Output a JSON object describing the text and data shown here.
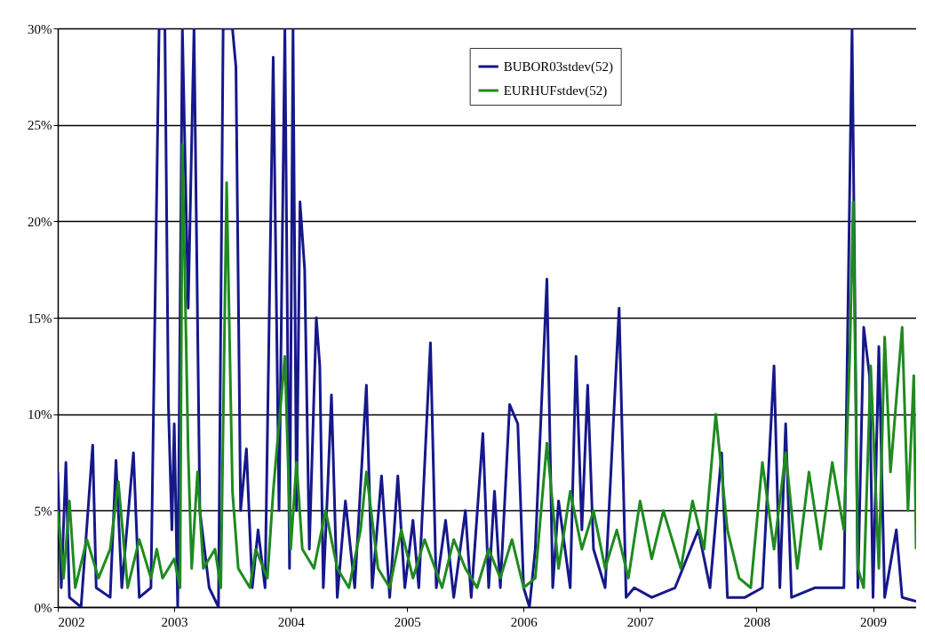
{
  "chart_data": {
    "type": "line",
    "xlim": [
      2002,
      2009.37
    ],
    "xticks": [
      2002,
      2003,
      2004,
      2005,
      2006,
      2007,
      2008,
      2009
    ],
    "ylim": [
      0,
      30
    ],
    "yticks": [
      {
        "value": 0,
        "label": "0%"
      },
      {
        "value": 5,
        "label": "5%"
      },
      {
        "value": 10,
        "label": "10%"
      },
      {
        "value": 15,
        "label": "15%"
      },
      {
        "value": 20,
        "label": "20%"
      },
      {
        "value": 25,
        "label": "25%"
      },
      {
        "value": 30,
        "label": "30%"
      }
    ],
    "grid": "y",
    "legend": "top",
    "series": [
      {
        "name": "BUBOR03stdev(52)",
        "color": "#16188a",
        "x": [
          2002.0,
          2002.03,
          2002.07,
          2002.1,
          2002.2,
          2002.3,
          2002.33,
          2002.45,
          2002.5,
          2002.55,
          2002.65,
          2002.7,
          2002.8,
          2002.87,
          2002.92,
          2002.95,
          2002.98,
          2003.0,
          2003.03,
          2003.07,
          2003.12,
          2003.17,
          2003.22,
          2003.3,
          2003.38,
          2003.42,
          2003.5,
          2003.53,
          2003.57,
          2003.62,
          2003.67,
          2003.72,
          2003.78,
          2003.85,
          2003.9,
          2003.95,
          2003.99,
          2004.02,
          2004.05,
          2004.08,
          2004.12,
          2004.16,
          2004.22,
          2004.25,
          2004.28,
          2004.32,
          2004.35,
          2004.4,
          2004.47,
          2004.55,
          2004.65,
          2004.7,
          2004.78,
          2004.85,
          2004.92,
          2004.98,
          2005.05,
          2005.1,
          2005.2,
          2005.25,
          2005.33,
          2005.4,
          2005.5,
          2005.55,
          2005.65,
          2005.7,
          2005.75,
          2005.8,
          2005.88,
          2005.95,
          2006.0,
          2006.05,
          2006.1,
          2006.2,
          2006.25,
          2006.3,
          2006.4,
          2006.45,
          2006.5,
          2006.55,
          2006.6,
          2006.7,
          2006.82,
          2006.88,
          2006.95,
          2007.1,
          2007.3,
          2007.5,
          2007.6,
          2007.7,
          2007.75,
          2007.9,
          2008.05,
          2008.15,
          2008.2,
          2008.25,
          2008.3,
          2008.5,
          2008.75,
          2008.82,
          2008.87,
          2008.92,
          2008.97,
          2009.0,
          2009.05,
          2009.1,
          2009.2,
          2009.25,
          2009.37
        ],
        "values": [
          7,
          1,
          7.5,
          0.5,
          0,
          8.4,
          1,
          0.5,
          7.6,
          1,
          8,
          0.5,
          1,
          30,
          30,
          10.5,
          4,
          9.5,
          0,
          30,
          15.5,
          30,
          5,
          1,
          0,
          30,
          30,
          28,
          5,
          8.2,
          1,
          4,
          1,
          28.5,
          5,
          30,
          2,
          30,
          5,
          21,
          17.5,
          3,
          15,
          12.5,
          1,
          6.5,
          11,
          0.5,
          5.5,
          1,
          11.5,
          1,
          6.8,
          0.5,
          6.8,
          1,
          4.5,
          1,
          13.7,
          1,
          4.5,
          0.5,
          5,
          0.5,
          9,
          1,
          6,
          1,
          10.5,
          9.5,
          1,
          0,
          3,
          17,
          1,
          5.5,
          1,
          13,
          4,
          11.5,
          3,
          1,
          15.5,
          0.5,
          1,
          0.5,
          1,
          4,
          1,
          8,
          0.5,
          0.5,
          1,
          12.5,
          1,
          9.5,
          0.5,
          1,
          1,
          30,
          1,
          14.5,
          12,
          0.5,
          13.5,
          0.5,
          4,
          0.5,
          0.3
        ]
      },
      {
        "name": "EURHUFstdev(52)",
        "color": "#1f8a1f",
        "x": [
          2002.0,
          2002.05,
          2002.1,
          2002.15,
          2002.25,
          2002.35,
          2002.45,
          2002.52,
          2002.6,
          2002.7,
          2002.8,
          2002.85,
          2002.9,
          2003.0,
          2003.05,
          2003.07,
          2003.12,
          2003.15,
          2003.2,
          2003.25,
          2003.35,
          2003.4,
          2003.45,
          2003.5,
          2003.55,
          2003.65,
          2003.7,
          2003.8,
          2003.85,
          2003.95,
          2004.0,
          2004.05,
          2004.1,
          2004.2,
          2004.3,
          2004.4,
          2004.5,
          2004.6,
          2004.65,
          2004.75,
          2004.85,
          2004.95,
          2005.05,
          2005.15,
          2005.3,
          2005.4,
          2005.5,
          2005.6,
          2005.7,
          2005.8,
          2005.9,
          2006.0,
          2006.1,
          2006.2,
          2006.3,
          2006.4,
          2006.5,
          2006.6,
          2006.7,
          2006.8,
          2006.9,
          2007.0,
          2007.1,
          2007.2,
          2007.35,
          2007.45,
          2007.55,
          2007.65,
          2007.75,
          2007.85,
          2007.95,
          2008.05,
          2008.15,
          2008.25,
          2008.35,
          2008.45,
          2008.55,
          2008.65,
          2008.75,
          2008.8,
          2008.83,
          2008.87,
          2008.92,
          2008.98,
          2009.05,
          2009.1,
          2009.15,
          2009.25,
          2009.3,
          2009.35,
          2009.37
        ],
        "values": [
          5,
          1.5,
          5.5,
          1,
          3.5,
          1.5,
          3,
          6.5,
          1,
          3.5,
          1.5,
          3,
          1.5,
          2.5,
          1,
          24,
          8,
          2,
          7,
          2,
          3,
          1,
          22,
          6,
          2,
          1,
          3,
          1.5,
          6,
          13,
          3,
          7.5,
          3,
          2,
          5,
          2,
          1,
          4,
          7,
          2,
          1,
          4,
          1.5,
          3.5,
          1,
          3.5,
          2,
          1,
          3,
          1.5,
          3.5,
          1,
          1.5,
          8.5,
          2,
          6,
          3,
          5,
          2,
          4,
          1.5,
          5.5,
          2.5,
          5,
          2,
          5.5,
          3,
          10,
          4,
          1.5,
          1,
          7.5,
          3,
          8,
          2,
          7,
          3,
          7.5,
          4,
          13,
          21,
          2,
          1,
          12.5,
          2,
          14,
          7,
          14.5,
          5,
          12,
          3
        ]
      }
    ]
  }
}
